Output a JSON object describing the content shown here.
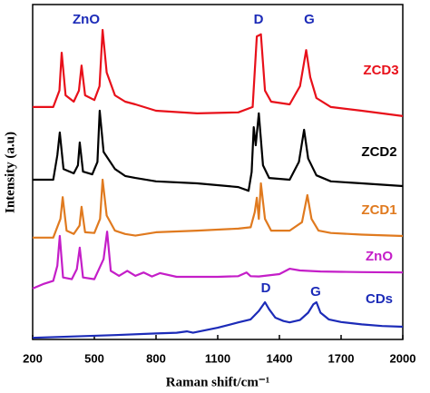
{
  "chart_data": {
    "type": "line",
    "x_label": "Raman shift/cm⁻¹",
    "y_label": "Intensity (a.u)",
    "xlim": [
      200,
      2000
    ],
    "ylim": [
      0,
      100
    ],
    "xticks": [
      200,
      500,
      800,
      1100,
      1400,
      1700,
      2000
    ],
    "annotations": [
      "ZnO",
      "D",
      "G",
      "D",
      "G"
    ],
    "annotation_color": "#1c2bb8",
    "series": [
      {
        "name": "ZCD3",
        "color": "#e8101a",
        "x": [
          200,
          300,
          330,
          341,
          360,
          400,
          425,
          438,
          455,
          500,
          525,
          540,
          560,
          600,
          650,
          700,
          800,
          1000,
          1200,
          1270,
          1290,
          1310,
          1330,
          1360,
          1450,
          1500,
          1530,
          1550,
          1580,
          1650,
          1800,
          2000
        ],
        "values": [
          69.4,
          69.4,
          74.3,
          85.6,
          72.9,
          71.0,
          74.3,
          81.8,
          72.9,
          71.5,
          75.6,
          92.4,
          79.7,
          72.9,
          71.0,
          70.2,
          68.3,
          67.5,
          67.8,
          69.4,
          90.5,
          91.1,
          74.3,
          71.0,
          70.2,
          75.6,
          86.4,
          78.3,
          72.1,
          69.4,
          68.3,
          66.7
        ]
      },
      {
        "name": "ZCD2",
        "color": "#000000",
        "x": [
          200,
          300,
          320,
          332,
          350,
          400,
          420,
          429,
          445,
          490,
          515,
          526,
          545,
          600,
          650,
          700,
          800,
          1000,
          1200,
          1250,
          1265,
          1275,
          1285,
          1300,
          1320,
          1350,
          1450,
          1495,
          1520,
          1540,
          1580,
          1650,
          1800,
          2000
        ],
        "values": [
          47.7,
          47.7,
          55.0,
          61.8,
          50.9,
          49.6,
          52.0,
          58.8,
          50.1,
          49.3,
          53.0,
          68.3,
          56.0,
          50.9,
          48.8,
          48.2,
          47.2,
          46.6,
          45.5,
          44.4,
          50.0,
          63.4,
          58.0,
          67.5,
          52.0,
          48.2,
          47.7,
          53.0,
          62.6,
          54.0,
          49.0,
          47.2,
          46.6,
          45.8
        ]
      },
      {
        "name": "ZCD1",
        "color": "#e07a1f",
        "x": [
          200,
          300,
          335,
          346,
          365,
          400,
          428,
          438,
          455,
          500,
          528,
          540,
          560,
          600,
          650,
          700,
          800,
          1000,
          1200,
          1260,
          1280,
          1290,
          1300,
          1310,
          1330,
          1360,
          1450,
          1510,
          1536,
          1556,
          1590,
          1650,
          1800,
          2000
        ],
        "values": [
          30.4,
          30.4,
          36.0,
          42.5,
          32.5,
          31.5,
          34.0,
          39.6,
          32.0,
          31.8,
          36.0,
          47.7,
          37.0,
          32.5,
          31.5,
          31.0,
          32.0,
          32.5,
          33.1,
          33.5,
          38.0,
          42.3,
          36.0,
          46.6,
          36.0,
          32.5,
          32.5,
          35.0,
          43.1,
          36.0,
          32.5,
          31.8,
          31.3,
          30.9
        ]
      },
      {
        "name": "ZnO",
        "color": "#c41ec8",
        "x": [
          200,
          250,
          300,
          320,
          332,
          348,
          390,
          415,
          429,
          445,
          500,
          545,
          562,
          580,
          620,
          660,
          700,
          740,
          780,
          820,
          900,
          1000,
          1100,
          1200,
          1240,
          1260,
          1300,
          1400,
          1450,
          1500,
          1600,
          1700,
          1800,
          2000
        ],
        "values": [
          15.2,
          16.5,
          17.5,
          22.0,
          30.9,
          18.5,
          18.0,
          21.0,
          27.4,
          18.5,
          18.0,
          24.0,
          32.2,
          20.5,
          19.0,
          20.5,
          19.0,
          20.0,
          18.8,
          19.8,
          18.7,
          18.7,
          18.7,
          18.9,
          20.0,
          18.9,
          18.8,
          19.5,
          21.1,
          20.6,
          20.3,
          20.2,
          20.1,
          20.0
        ]
      },
      {
        "name": "CDs",
        "color": "#1c2bb8",
        "x": [
          200,
          400,
          600,
          800,
          900,
          950,
          980,
          1100,
          1200,
          1260,
          1300,
          1330,
          1350,
          1380,
          1420,
          1450,
          1500,
          1540,
          1565,
          1580,
          1600,
          1640,
          1700,
          1800,
          1900,
          2000
        ],
        "values": [
          0.5,
          0.9,
          1.3,
          1.8,
          2.0,
          2.4,
          2.0,
          3.5,
          5.1,
          6.0,
          8.5,
          11.1,
          9.0,
          6.5,
          5.5,
          5.1,
          5.8,
          8.0,
          10.5,
          11.1,
          8.0,
          6.0,
          5.2,
          4.5,
          4.0,
          3.8
        ]
      }
    ]
  }
}
